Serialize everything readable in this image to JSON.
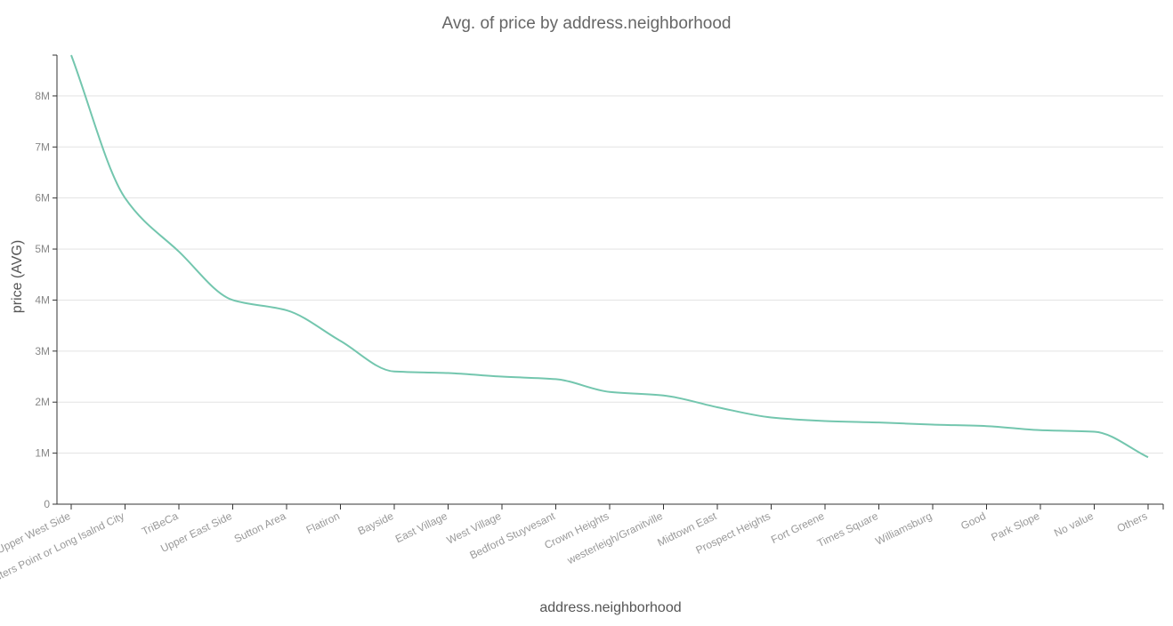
{
  "chart_data": {
    "type": "line",
    "title": "Avg. of price by address.neighborhood",
    "xlabel": "address.neighborhood",
    "ylabel": "price (AVG)",
    "ylim": [
      0,
      8800000
    ],
    "y_ticks": [
      0,
      1000000,
      2000000,
      3000000,
      4000000,
      5000000,
      6000000,
      7000000,
      8000000
    ],
    "y_tick_labels": [
      "0",
      "1M",
      "2M",
      "3M",
      "4M",
      "5M",
      "6M",
      "7M",
      "8M"
    ],
    "grid": true,
    "line_color": "#73c6ae",
    "categories": [
      "Upper West Side",
      "Hunters Point or Long Isalnd City",
      "TriBeCa",
      "Upper East Side",
      "Sutton Area",
      "Flatiron",
      "Bayside",
      "East Village",
      "West Village",
      "Bedford Stuyvesant",
      "Crown Heights",
      "westerleigh/Granitville",
      "Midtown East",
      "Prospect Heights",
      "Fort Greene",
      "Times Square",
      "Williamsburg",
      "Good",
      "Park Slope",
      "No value",
      "Others"
    ],
    "series": [
      {
        "values": [
          8800000,
          6000000,
          4950000,
          4000000,
          3800000,
          3200000,
          2600000,
          2570000,
          2500000,
          2450000,
          2200000,
          2130000,
          1900000,
          1700000,
          1630000,
          1600000,
          1560000,
          1530000,
          1450000,
          1420000,
          920000
        ]
      }
    ]
  }
}
